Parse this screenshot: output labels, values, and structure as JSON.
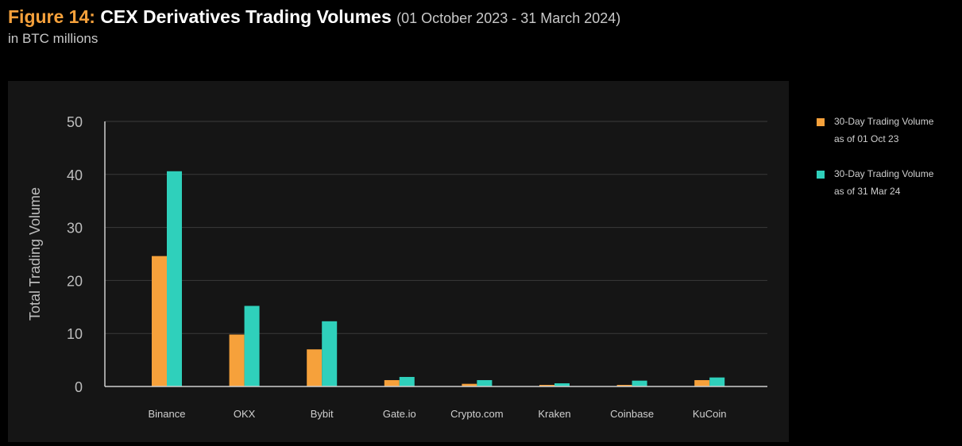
{
  "header": {
    "figure_label": "Figure 14:",
    "title": "CEX Derivatives Trading Volumes",
    "date_range": "(01 October 2023 - 31 March 2024)",
    "subtitle": "in BTC millions"
  },
  "colors": {
    "orange": "#f6a13b",
    "teal": "#2fd0bb",
    "panel_bg": "#151515",
    "gridline": "#3a3a3a",
    "axis": "#cfcfcf"
  },
  "legend": {
    "position": "right",
    "items": [
      {
        "line1": "30-Day Trading Volume",
        "line2": "as of 01 Oct 23",
        "color": "#f6a13b"
      },
      {
        "line1": "30-Day Trading Volume",
        "line2": "as of 31 Mar 24",
        "color": "#2fd0bb"
      }
    ]
  },
  "chart_data": {
    "type": "bar",
    "title": "CEX Derivatives Trading Volumes",
    "ylabel": "Total Trading Volume",
    "xlabel": "",
    "ylim": [
      0,
      50
    ],
    "yticks": [
      0,
      10,
      20,
      30,
      40,
      50
    ],
    "grid": true,
    "categories": [
      "Binance",
      "OKX",
      "Bybit",
      "Gate.io",
      "Crypto.com",
      "Kraken",
      "Coinbase",
      "KuCoin"
    ],
    "series": [
      {
        "name": "30-Day Trading Volume as of 01 Oct 23",
        "color": "#f6a13b",
        "values": [
          24.6,
          9.8,
          7.0,
          1.2,
          0.5,
          0.3,
          0.3,
          1.2
        ]
      },
      {
        "name": "30-Day Trading Volume as of 31 Mar 24",
        "color": "#2fd0bb",
        "values": [
          40.6,
          15.2,
          12.3,
          1.8,
          1.2,
          0.6,
          1.1,
          1.7
        ]
      }
    ]
  }
}
